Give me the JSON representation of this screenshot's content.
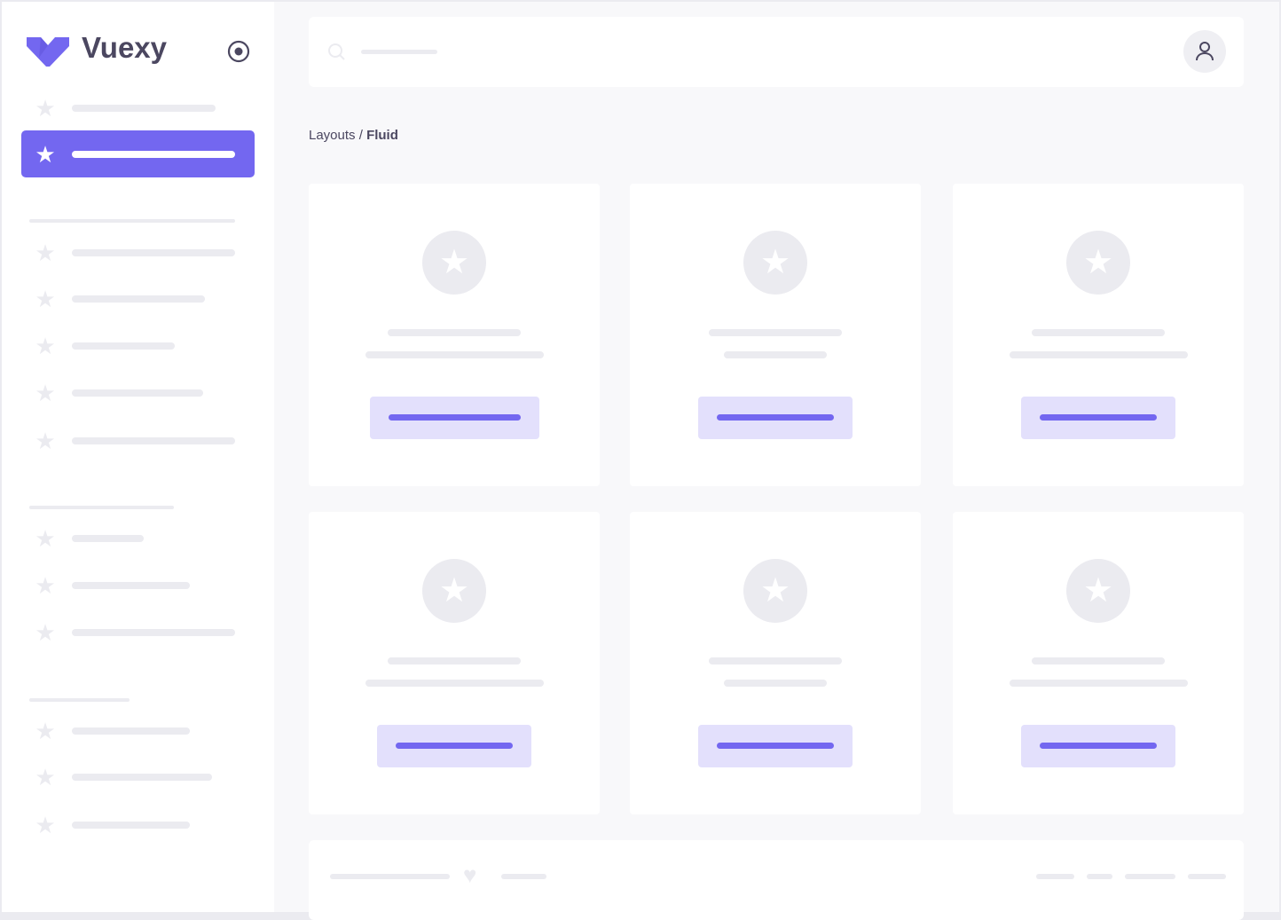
{
  "brand": {
    "name": "Vuexy",
    "logo_color": "#7367f0"
  },
  "colors": {
    "primary": "#7367f0",
    "primary_light": "#e3e0fc",
    "placeholder": "#ebebf0",
    "background": "#f8f8fa"
  },
  "sidebar": {
    "toggle_icon": "radio-circle-icon",
    "active_index": 1
  },
  "header": {
    "search_icon": "search-icon",
    "avatar_icon": "user-icon"
  },
  "breadcrumb": {
    "parent": "Layouts",
    "separator": "/",
    "current": "Fluid"
  },
  "footer": {
    "icon": "heart-icon"
  }
}
